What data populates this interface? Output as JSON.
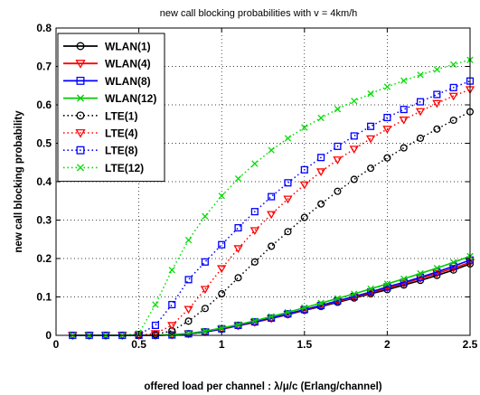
{
  "chart_data": {
    "type": "line",
    "title": "new call blocking probabilities with v = 4km/h",
    "xlabel": "offered load per channel : λ/μ/c (Erlang/channel)",
    "ylabel": "new call blocking probability",
    "xlim": [
      0,
      2.5
    ],
    "ylim": [
      0,
      0.8
    ],
    "xticks": [
      0,
      0.5,
      1,
      1.5,
      2,
      2.5
    ],
    "xtick_labels": [
      "0",
      "0.5",
      "1",
      "1.5",
      "2",
      "2.5"
    ],
    "yticks": [
      0,
      0.1,
      0.2,
      0.3,
      0.4,
      0.5,
      0.6,
      0.7,
      0.8
    ],
    "ytick_labels": [
      "0",
      "0.1",
      "0.2",
      "0.3",
      "0.4",
      "0.5",
      "0.6",
      "0.7",
      "0.8"
    ],
    "grid": true,
    "legend_position": "top-left",
    "x": [
      0.1,
      0.2,
      0.3,
      0.4,
      0.5,
      0.6,
      0.7,
      0.8,
      0.9,
      1.0,
      1.1,
      1.2,
      1.3,
      1.4,
      1.5,
      1.6,
      1.7,
      1.8,
      1.9,
      2.0,
      2.1,
      2.2,
      2.3,
      2.4,
      2.5
    ],
    "series": [
      {
        "name": "WLAN(1)",
        "color": "#000000",
        "line_style": "solid",
        "marker": "circle",
        "values": [
          0,
          0,
          0,
          0,
          0,
          0,
          0.001,
          0.004,
          0.009,
          0.016,
          0.025,
          0.034,
          0.044,
          0.054,
          0.065,
          0.075,
          0.086,
          0.097,
          0.108,
          0.119,
          0.131,
          0.143,
          0.156,
          0.17,
          0.186
        ]
      },
      {
        "name": "WLAN(4)",
        "color": "#ff0000",
        "line_style": "solid",
        "marker": "triangle-down",
        "values": [
          0,
          0,
          0,
          0,
          0,
          0,
          0.001,
          0.004,
          0.009,
          0.016,
          0.025,
          0.034,
          0.044,
          0.055,
          0.066,
          0.077,
          0.088,
          0.099,
          0.111,
          0.123,
          0.135,
          0.148,
          0.161,
          0.175,
          0.19
        ]
      },
      {
        "name": "WLAN(8)",
        "color": "#0000ff",
        "line_style": "solid",
        "marker": "square",
        "values": [
          0,
          0,
          0,
          0,
          0,
          0,
          0.001,
          0.004,
          0.009,
          0.017,
          0.026,
          0.035,
          0.045,
          0.056,
          0.067,
          0.078,
          0.09,
          0.101,
          0.113,
          0.126,
          0.138,
          0.151,
          0.165,
          0.18,
          0.196
        ]
      },
      {
        "name": "WLAN(12)",
        "color": "#00cc00",
        "line_style": "solid",
        "marker": "x",
        "values": [
          0,
          0,
          0,
          0,
          0,
          0,
          0.002,
          0.005,
          0.011,
          0.019,
          0.028,
          0.038,
          0.049,
          0.06,
          0.072,
          0.084,
          0.096,
          0.108,
          0.121,
          0.134,
          0.147,
          0.161,
          0.175,
          0.19,
          0.206
        ]
      },
      {
        "name": "LTE(1)",
        "color": "#000000",
        "line_style": "dotted",
        "marker": "circle",
        "values": [
          0,
          0,
          0,
          0,
          0,
          0.002,
          0.012,
          0.037,
          0.07,
          0.108,
          0.15,
          0.191,
          0.232,
          0.27,
          0.307,
          0.342,
          0.375,
          0.406,
          0.435,
          0.462,
          0.488,
          0.513,
          0.537,
          0.56,
          0.582
        ]
      },
      {
        "name": "LTE(4)",
        "color": "#ff0000",
        "line_style": "dotted",
        "marker": "triangle-down",
        "values": [
          0,
          0,
          0,
          0,
          0,
          0.005,
          0.026,
          0.068,
          0.12,
          0.174,
          0.226,
          0.273,
          0.315,
          0.355,
          0.392,
          0.426,
          0.457,
          0.485,
          0.512,
          0.537,
          0.561,
          0.583,
          0.604,
          0.623,
          0.64
        ]
      },
      {
        "name": "LTE(8)",
        "color": "#0000ff",
        "line_style": "dotted",
        "marker": "square",
        "values": [
          0,
          0,
          0,
          0,
          0.002,
          0.026,
          0.08,
          0.145,
          0.191,
          0.236,
          0.28,
          0.322,
          0.361,
          0.397,
          0.431,
          0.463,
          0.492,
          0.519,
          0.544,
          0.567,
          0.588,
          0.608,
          0.627,
          0.645,
          0.662
        ]
      },
      {
        "name": "LTE(12)",
        "color": "#00dd00",
        "line_style": "dotted",
        "marker": "x",
        "values": [
          0,
          0,
          0,
          0,
          0.005,
          0.08,
          0.17,
          0.248,
          0.31,
          0.363,
          0.408,
          0.447,
          0.482,
          0.513,
          0.541,
          0.566,
          0.589,
          0.61,
          0.629,
          0.647,
          0.663,
          0.678,
          0.692,
          0.705,
          0.717
        ]
      }
    ]
  }
}
